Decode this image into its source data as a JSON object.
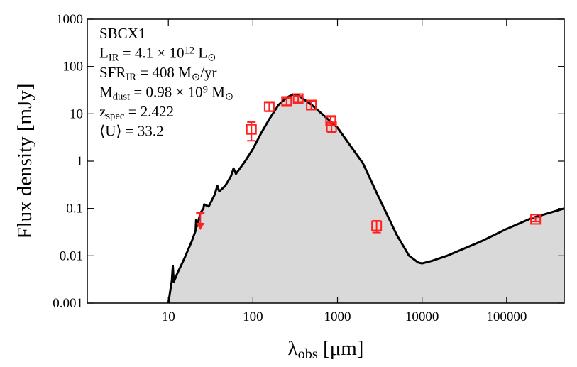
{
  "chart_data": {
    "type": "line",
    "xscale": "log",
    "yscale": "log",
    "xlim": [
      1.1,
      480000
    ],
    "ylim": [
      0.001,
      1000
    ],
    "xticks": [
      10,
      100,
      1000,
      10000,
      100000
    ],
    "yticks": [
      0.001,
      0.01,
      0.1,
      1,
      10,
      100,
      1000
    ],
    "x_label": [
      {
        "text": "λ"
      },
      {
        "sub": "obs"
      },
      {
        "text": " [μm]"
      }
    ],
    "y_label": "Flux density [mJy]",
    "annotations": [
      [
        {
          "text": "SBCX1"
        }
      ],
      [
        {
          "text": "L"
        },
        {
          "sub": "IR"
        },
        {
          "text": " = 4.1 × 10"
        },
        {
          "sup": "12"
        },
        {
          "text": " L"
        },
        {
          "sub": "⊙"
        }
      ],
      [
        {
          "text": "SFR"
        },
        {
          "sub": "IR"
        },
        {
          "text": " = 408 M"
        },
        {
          "sub": "⊙"
        },
        {
          "text": "/yr"
        }
      ],
      [
        {
          "text": "M"
        },
        {
          "sub": "dust"
        },
        {
          "text": " = 0.98 × 10"
        },
        {
          "sup": "9"
        },
        {
          "text": " M"
        },
        {
          "sub": "⊙"
        }
      ],
      [
        {
          "text": "z"
        },
        {
          "sub": "spec"
        },
        {
          "text": " = 2.422"
        }
      ],
      [
        {
          "text": "⟨U⟩ = 33.2"
        }
      ]
    ],
    "series": [
      {
        "type": "line",
        "color": "#000000",
        "fill": "#d9d9d9",
        "x": [
          10,
          11,
          11.3,
          11.6,
          12.8,
          15.4,
          18.9,
          21,
          21.3,
          21.8,
          24,
          26,
          26.5,
          30,
          35,
          38,
          40,
          47,
          55,
          59,
          63,
          80,
          100,
          125,
          156,
          200,
          250,
          300,
          350,
          500,
          1000,
          2000,
          3000,
          5000,
          7000,
          9000,
          10000,
          13000,
          20000,
          50000,
          100000,
          200000,
          480000
        ],
        "values": [
          0.001,
          0.003,
          0.0061,
          0.0028,
          0.0043,
          0.0086,
          0.0202,
          0.034,
          0.058,
          0.042,
          0.081,
          0.1,
          0.122,
          0.11,
          0.19,
          0.3,
          0.23,
          0.3,
          0.48,
          0.7,
          0.54,
          0.97,
          1.8,
          3.9,
          7.7,
          15.3,
          22,
          25.8,
          24,
          15.3,
          5.1,
          0.9,
          0.19,
          0.028,
          0.0101,
          0.0072,
          0.0069,
          0.0078,
          0.0101,
          0.0202,
          0.037,
          0.063,
          0.1
        ]
      },
      {
        "type": "scatter",
        "marker": "square",
        "color": "#ff2020",
        "x": [
          96,
          156,
          250,
          343,
          490,
          830,
          850,
          2900,
          220000
        ],
        "values": [
          4.7,
          14.3,
          18.2,
          20.9,
          15.3,
          7.2,
          5.3,
          0.043,
          0.059
        ],
        "errors": [
          2,
          3,
          3,
          3,
          3,
          1.5,
          1.2,
          0.012,
          0.006
        ]
      },
      {
        "type": "scatter",
        "marker": "upper-limit",
        "color": "#ff2020",
        "x": [
          23.9
        ],
        "values": [
          0.057
        ]
      }
    ]
  }
}
